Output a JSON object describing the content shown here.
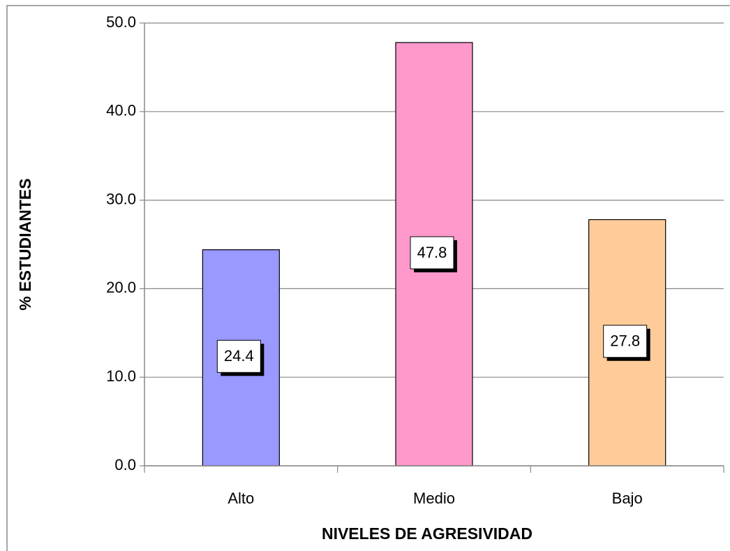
{
  "chart_data": {
    "type": "bar",
    "x_label": "NIVELES DE AGRESIVIDAD",
    "y_label": "% ESTUDIANTES",
    "categories": [
      "Alto",
      "Medio",
      "Bajo"
    ],
    "values": [
      24.4,
      47.8,
      27.8
    ],
    "colors": [
      "#9999ff",
      "#ff99cc",
      "#ffcc99"
    ],
    "ylim": [
      0,
      50
    ],
    "yticks": [
      {
        "value": 0,
        "label": "0.0"
      },
      {
        "value": 10,
        "label": "10.0"
      },
      {
        "value": 20,
        "label": "20.0"
      },
      {
        "value": 30,
        "label": "30.0"
      },
      {
        "value": 40,
        "label": "40.0"
      },
      {
        "value": 50,
        "label": "50.0"
      }
    ],
    "grid": true
  }
}
